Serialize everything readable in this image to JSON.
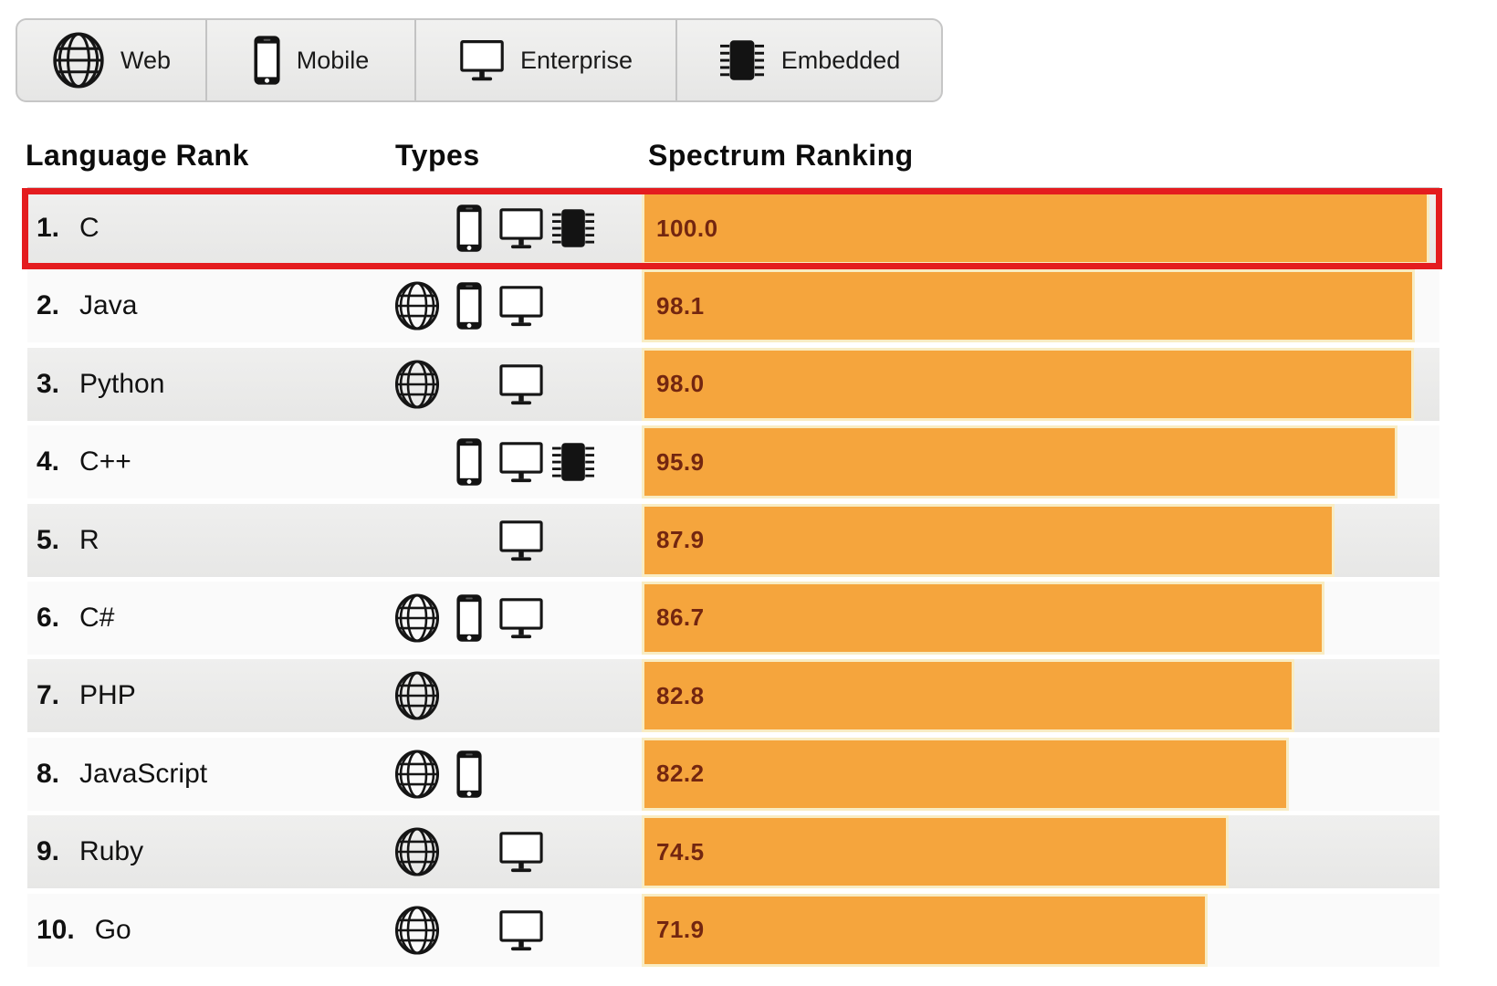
{
  "filter_bar": {
    "buttons": [
      {
        "label": "Web",
        "icon": "globe-icon"
      },
      {
        "label": "Mobile",
        "icon": "smartphone-icon"
      },
      {
        "label": "Enterprise",
        "icon": "monitor-icon"
      },
      {
        "label": "Embedded",
        "icon": "chip-icon"
      }
    ]
  },
  "table": {
    "columns": [
      {
        "key": "rank",
        "label": "Language Rank"
      },
      {
        "key": "types",
        "label": "Types"
      },
      {
        "key": "score",
        "label": "Spectrum Ranking"
      }
    ],
    "rows": [
      {
        "rank": "1.",
        "language": "C",
        "types": [
          "mobile",
          "enterprise",
          "embedded"
        ],
        "score": "100.0",
        "value": 100.0,
        "highlighted": true
      },
      {
        "rank": "2.",
        "language": "Java",
        "types": [
          "web",
          "mobile",
          "enterprise"
        ],
        "score": "98.1",
        "value": 98.1
      },
      {
        "rank": "3.",
        "language": "Python",
        "types": [
          "web",
          "enterprise"
        ],
        "score": "98.0",
        "value": 98.0
      },
      {
        "rank": "4.",
        "language": "C++",
        "types": [
          "mobile",
          "enterprise",
          "embedded"
        ],
        "score": "95.9",
        "value": 95.9
      },
      {
        "rank": "5.",
        "language": "R",
        "types": [
          "enterprise"
        ],
        "score": "87.9",
        "value": 87.9
      },
      {
        "rank": "6.",
        "language": "C#",
        "types": [
          "web",
          "mobile",
          "enterprise"
        ],
        "score": "86.7",
        "value": 86.7
      },
      {
        "rank": "7.",
        "language": "PHP",
        "types": [
          "web"
        ],
        "score": "82.8",
        "value": 82.8
      },
      {
        "rank": "8.",
        "language": "JavaScript",
        "types": [
          "web",
          "mobile"
        ],
        "score": "82.2",
        "value": 82.2
      },
      {
        "rank": "9.",
        "language": "Ruby",
        "types": [
          "web",
          "enterprise"
        ],
        "score": "74.5",
        "value": 74.5
      },
      {
        "rank": "10.",
        "language": "Go",
        "types": [
          "web",
          "enterprise"
        ],
        "score": "71.9",
        "value": 71.9
      }
    ]
  },
  "chart_data": {
    "type": "bar",
    "orientation": "horizontal",
    "categories": [
      "C",
      "Java",
      "Python",
      "C++",
      "R",
      "C#",
      "PHP",
      "JavaScript",
      "Ruby",
      "Go"
    ],
    "values": [
      100.0,
      98.1,
      98.0,
      95.9,
      87.9,
      86.7,
      82.8,
      82.2,
      74.5,
      71.9
    ],
    "title": "Spectrum Ranking",
    "xlim": [
      0,
      100
    ],
    "bar_color": "#f5a53d",
    "highlighted_category": "C"
  },
  "colors": {
    "bar": "#f5a53d",
    "bar_border": "#f8ecc3",
    "score_text": "#732610",
    "highlight_red": "#e41c1f",
    "row_odd": "#ebebeb",
    "row_even": "#fafafa"
  }
}
